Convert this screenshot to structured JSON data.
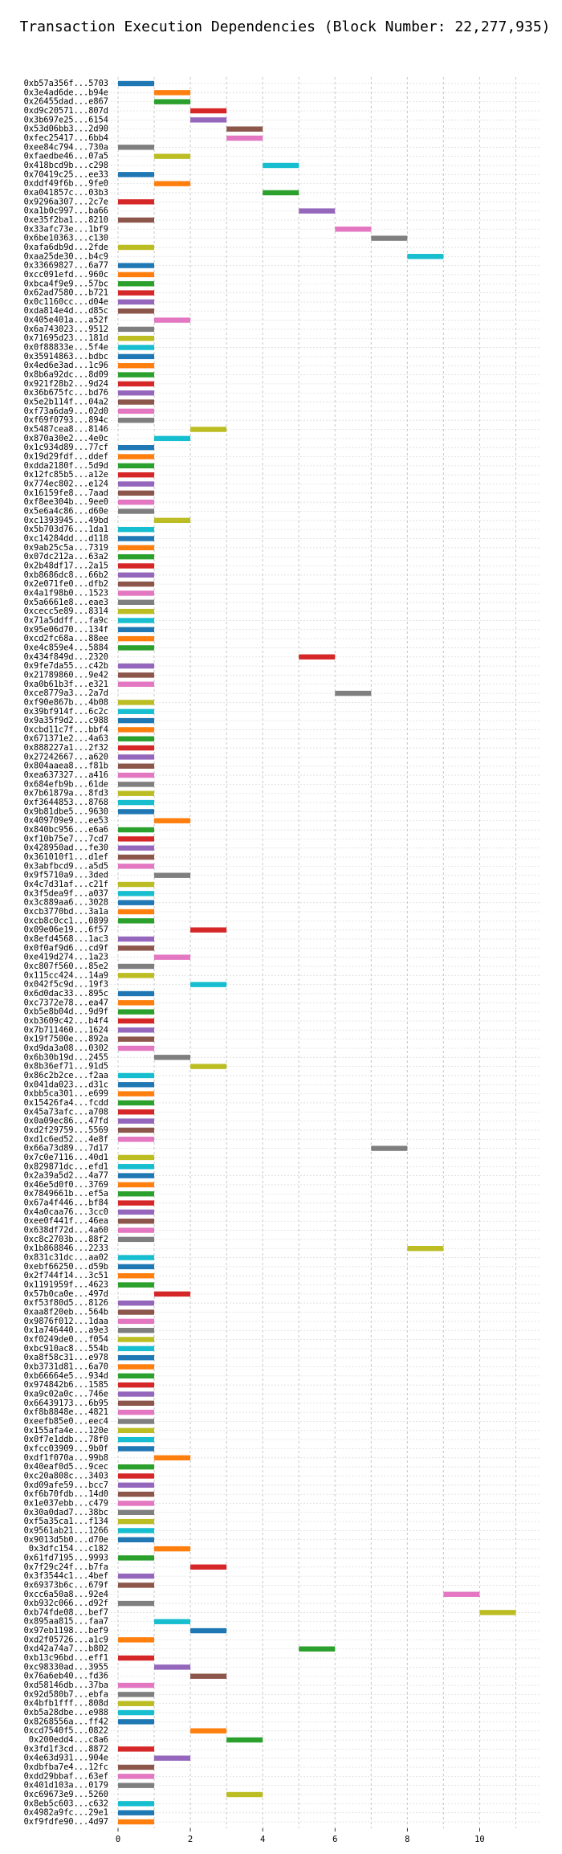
{
  "chart_data": {
    "type": "gantt",
    "title": "Transaction Execution Dependencies (Block Number: 22,277,935)",
    "categories": [
      "0xb57a356f...5703",
      "0x3e4ad6de...b94e",
      "0x26455dad...e867",
      "0xd9c20571...807d",
      "0x3b697e25...6154",
      "0x53d06bb3...2d90",
      "0xfec25417...6bb4",
      "0xee84c794...730a",
      "0xfaedbe46...07a5",
      "0x418bcd9b...c298",
      "0x70419c25...ee33",
      "0xddf49f6b...9fe0",
      "0xa041857c...03b3",
      "0x9296a307...2c7e",
      "0xa1b0c997...ba66",
      "0xe35f2ba1...8210",
      "0x33afc73e...1bf9",
      "0x6be10363...c130",
      "0xafa6db9d...2fde",
      "0xaa25de30...b4c9",
      "0x33669827...6a77",
      "0xcc091efd...960c",
      "0xbca4f9e9...57bc",
      "0x62ad7580...b721",
      "0x0c1160cc...d04e",
      "0xda814e4d...d85c",
      "0x405e401a...a52f",
      "0x6a743023...9512",
      "0x71695d23...181d",
      "0x0f88833e...5f4e",
      "0x35914863...bdbc",
      "0x4ed6e3ad...1c96",
      "0x8b6a92dc...8d09",
      "0x921f28b2...9d24",
      "0x36b675fc...bd76",
      "0x5e2b114f...04a2",
      "0xf73a6da9...02d0",
      "0xf69f0793...894c",
      "0x5487cea8...8146",
      "0x870a30e2...4e0c",
      "0x1c934d89...77cf",
      "0x19d29fdf...ddef",
      "0xdda2180f...5d9d",
      "0x12fc85b5...a12e",
      "0x774ec802...e124",
      "0x16159fe8...7aad",
      "0xf8ee304b...9ee0",
      "0x5e6a4c86...d60e",
      "0xc1393945...49bd",
      "0x5b703d76...1da1",
      "0xc14284dd...d118",
      "0x9ab25c5a...7319",
      "0x07dc212a...63a2",
      "0x2b48df17...2a15",
      "0xb8686dc8...66b2",
      "0x2e071fe0...dfb2",
      "0x4a1f98b0...1523",
      "0x5a6661e8...eae3",
      "0xcecc5e89...8314",
      "0x71a5ddff...fa9c",
      "0x95e06d70...134f",
      "0xcd2fc68a...88ee",
      "0xe4c859e4...5884",
      "0x434f849d...2320",
      "0x9fe7da55...c42b",
      "0x21789860...9e42",
      "0xa0b61b3f...e321",
      "0xce8779a3...2a7d",
      "0xf90e867b...4b08",
      "0x39bf914f...6c2c",
      "0x9a35f9d2...c988",
      "0xcbd11c7f...bbf4",
      "0x671371e2...4a63",
      "0x888227a1...2f32",
      "0x27242667...a620",
      "0x804aaea8...f81b",
      "0xea637327...a416",
      "0x684efb9b...61de",
      "0x7b61879a...8fd3",
      "0xf3644853...8768",
      "0x9b81dbe5...9630",
      "0x409709e9...ee53",
      "0x840bc956...e6a6",
      "0xf10b75e7...7cd7",
      "0x428950ad...fe30",
      "0x361010f1...d1ef",
      "0x3abfbcd9...a5d5",
      "0x9f5710a9...3ded",
      "0x4c7d31af...c21f",
      "0x3f5dea9f...a037",
      "0x3c889aa6...3028",
      "0xcb3770bd...3a1a",
      "0xcb8c0cc1...0899",
      "0x09e06e19...6f57",
      "0x8efd4568...1ac3",
      "0x0f0af9d6...cd9f",
      "0xe419d274...1a23",
      "0xc807f560...85e2",
      "0x115cc424...14a9",
      "0x042f5c9d...19f3",
      "0x6d0dac33...895c",
      "0xc7372e78...ea47",
      "0xb5e8b04d...9d9f",
      "0xb3609c42...b4f4",
      "0x7b711460...1624",
      "0x19f7500e...892a",
      "0xd9da3a08...0302",
      "0x6b30b19d...2455",
      "0x8b36ef71...91d5",
      "0x86c2b2ce...f2aa",
      "0x041da023...d31c",
      "0xbb5ca301...e699",
      "0x15426fa4...fcdd",
      "0x45a73afc...a708",
      "0x0a09ec86...47fd",
      "0xd2f29759...5569",
      "0xd1c6ed52...4e8f",
      "0x66a73d89...7d17",
      "0x7c0e7116...40d1",
      "0x829871dc...efd1",
      "0x2a39a5d2...4a77",
      "0x46e5d0f0...3769",
      "0x7849661b...ef5a",
      "0x67a4f446...bf84",
      "0x4a0caa76...3cc0",
      "0xee0f441f...46ea",
      "0x638df72d...4a60",
      "0xc8c2703b...88f2",
      "0x1b868846...2233",
      "0x831c31dc...aa02",
      "0xebf66250...d59b",
      "0x2f744f14...3c51",
      "0x1191959f...4623",
      "0x57b0ca0e...497d",
      "0xf53f80d5...8126",
      "0xaa8f20eb...564b",
      "0x9876f012...1daa",
      "0x1a746440...a9e3",
      "0xf0249de0...f054",
      "0xbc910ac8...554b",
      "0xa8f58c31...e978",
      "0xb3731d81...6a70",
      "0xb66664e5...934d",
      "0x974842b6...1585",
      "0xa9c02a0c...746e",
      "0x66439173...6b95",
      "0xf8b8848e...4821",
      "0xeefb85e0...eec4",
      "0x155afa4e...120e",
      "0x0f7e1ddb...78f0",
      "0xfcc03909...9b0f",
      "0xdf1f070a...99b8",
      "0x40eaf0d5...9cec",
      "0xc20a808c...3403",
      "0xd09afe59...bcc7",
      "0xf6b70fdb...14d0",
      "0x1e037ebb...c479",
      "0x30a0dad7...38bc",
      "0xf5a35ca1...f134",
      "0x9561ab21...1266",
      "0x9013d5b0...d70e",
      "0x3dfc154...c182",
      "0x61fd7195...9993",
      "0x7f29c24f...b7fa",
      "0x3f3544c1...4bef",
      "0x69373b6c...679f",
      "0xcc6a50a8...92e4",
      "0xb932c066...d92f",
      "0xb74fde08...bef7",
      "0x895aa815...faa7",
      "0x97eb1198...bef9",
      "0xd2f05726...a1c9",
      "0xd42a74a7...b802",
      "0xb13c96bd...eff1",
      "0xc98330ad...3955",
      "0x76a6eb40...fd36",
      "0xd58146db...37ba",
      "0x92d580b7...ebfa",
      "0x4bfb1fff...808d",
      "0xb5a28dbe...e988",
      "0x8268556a...ff42",
      "0xcd7540f5...0822",
      "0x200edd4...c8a6",
      "0x3fd1f3cd...8872",
      "0x4e63d931...904e",
      "0xdbfba7e4...12fc",
      "0xdd29bbaf...63ef",
      "0x401d103a...0179",
      "0xc69673e9...5260",
      "0x8eb5c603...c632",
      "0x4982a9fc...29e1",
      "0xf9fdfe90...4d97"
    ],
    "values": [
      0,
      1,
      1,
      2,
      2,
      3,
      3,
      0,
      1,
      4,
      0,
      1,
      4,
      0,
      5,
      0,
      6,
      7,
      0,
      8,
      0,
      0,
      0,
      0,
      0,
      0,
      1,
      0,
      0,
      0,
      0,
      0,
      0,
      0,
      0,
      0,
      0,
      0,
      2,
      1,
      0,
      0,
      0,
      0,
      0,
      0,
      0,
      0,
      1,
      0,
      0,
      0,
      0,
      0,
      0,
      0,
      0,
      0,
      0,
      0,
      0,
      0,
      0,
      5,
      0,
      0,
      0,
      6,
      0,
      0,
      0,
      0,
      0,
      0,
      0,
      0,
      0,
      0,
      0,
      0,
      0,
      1,
      0,
      0,
      0,
      0,
      0,
      1,
      0,
      0,
      0,
      0,
      0,
      2,
      0,
      0,
      1,
      0,
      0,
      2,
      0,
      0,
      0,
      0,
      0,
      0,
      0,
      1,
      2,
      0,
      0,
      0,
      0,
      0,
      0,
      0,
      0,
      7,
      0,
      0,
      0,
      0,
      0,
      0,
      0,
      0,
      0,
      0,
      8,
      0,
      0,
      0,
      0,
      1,
      0,
      0,
      0,
      0,
      0,
      0,
      0,
      0,
      0,
      0,
      0,
      0,
      0,
      0,
      0,
      0,
      0,
      1,
      0,
      0,
      0,
      0,
      0,
      0,
      0,
      0,
      0,
      1,
      0,
      2,
      0,
      0,
      9,
      0,
      10,
      1,
      2,
      0,
      5,
      0,
      1,
      2,
      0,
      0,
      0,
      0,
      0,
      2,
      3,
      0,
      1,
      0,
      0,
      0,
      3,
      0,
      0,
      0
    ],
    "duration": 1,
    "palette": [
      "#1f77b4",
      "#ff7f0e",
      "#2ca02c",
      "#d62728",
      "#9467bd",
      "#8c564b",
      "#e377c2",
      "#7f7f7f",
      "#bcbd22",
      "#17becf"
    ],
    "xlim": [
      -0.2,
      11.7
    ],
    "xticks": [
      0,
      2,
      4,
      6,
      8,
      10
    ],
    "xminor_ticks": [
      1,
      3,
      5,
      7,
      9,
      11
    ],
    "grid": true
  }
}
